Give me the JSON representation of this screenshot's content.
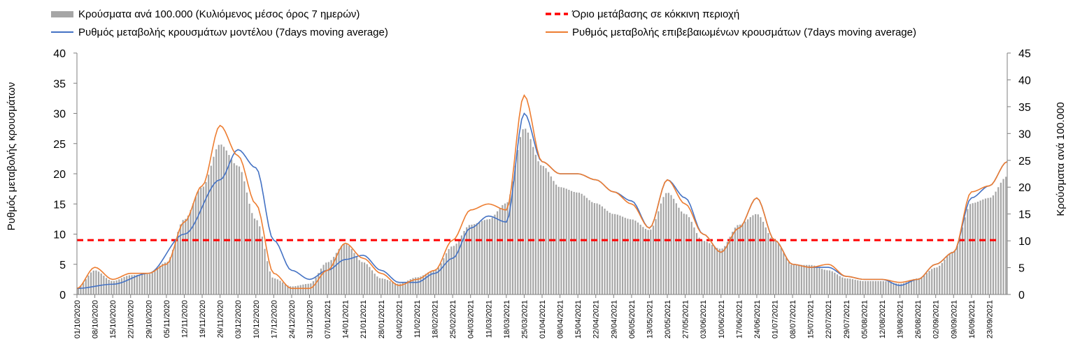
{
  "chart_data": {
    "type": "bar+line",
    "legend": {
      "bars": "Κρούσματα ανά 100.000 (Κυλιόμενος μέσος όρος 7 ημερών)",
      "threshold": "Όριο μετάβασης σε κόκκινη περιοχή",
      "model": "Ρυθμός μεταβολής κρουσμάτων μοντέλου (7days moving average)",
      "confirmed": "Ρυθμός μεταβολής επιβεβαιωμένων κρουσμάτων (7days moving average)"
    },
    "ylabel_left": "Ρυθμός μεταβολής κρουσμάτων",
    "ylabel_right": "Κρούσματα ανά 100.000",
    "ylim_left": [
      0,
      40
    ],
    "ylim_right": [
      0,
      45
    ],
    "yticks_left": [
      0,
      5,
      10,
      15,
      20,
      25,
      30,
      35,
      40
    ],
    "yticks_right": [
      0,
      5,
      10,
      15,
      20,
      25,
      30,
      35,
      40,
      45
    ],
    "threshold_value_left": 9,
    "x_tick_labels": [
      "01/10/2020",
      "08/10/2020",
      "15/10/2020",
      "22/10/2020",
      "29/10/2020",
      "05/11/2020",
      "12/11/2020",
      "19/11/2020",
      "26/11/2020",
      "03/12/2020",
      "10/12/2020",
      "17/12/2020",
      "24/12/2020",
      "31/12/2020",
      "07/01/2021",
      "14/01/2021",
      "21/01/2021",
      "28/01/2021",
      "04/02/2021",
      "11/02/2021",
      "18/02/2021",
      "25/02/2021",
      "04/03/2021",
      "11/03/2021",
      "18/03/2021",
      "25/03/2021",
      "01/04/2021",
      "08/04/2021",
      "15/04/2021",
      "22/04/2021",
      "29/04/2021",
      "06/05/2021",
      "13/05/2021",
      "20/05/2021",
      "27/05/2021",
      "03/06/2021",
      "10/06/2021",
      "17/06/2021",
      "24/06/2021",
      "01/07/2021",
      "08/07/2021",
      "15/07/2021",
      "22/07/2021",
      "29/07/2021",
      "05/08/2021",
      "12/08/2021",
      "19/08/2021",
      "26/08/2021",
      "02/09/2021",
      "09/09/2021",
      "16/09/2021",
      "23/09/2021"
    ],
    "days_per_tick": 7,
    "num_days": 364,
    "bars_keyframes_right": [
      [
        0,
        1.2
      ],
      [
        7,
        4.5
      ],
      [
        14,
        2.5
      ],
      [
        21,
        3.6
      ],
      [
        28,
        3.8
      ],
      [
        35,
        6
      ],
      [
        42,
        14
      ],
      [
        49,
        20
      ],
      [
        56,
        28
      ],
      [
        63,
        24
      ],
      [
        70,
        14
      ],
      [
        77,
        3
      ],
      [
        84,
        1.5
      ],
      [
        91,
        2
      ],
      [
        98,
        6
      ],
      [
        105,
        9.5
      ],
      [
        112,
        6
      ],
      [
        119,
        3
      ],
      [
        126,
        2
      ],
      [
        133,
        3.2
      ],
      [
        140,
        4.5
      ],
      [
        147,
        9
      ],
      [
        154,
        13
      ],
      [
        161,
        14
      ],
      [
        168,
        17
      ],
      [
        175,
        31
      ],
      [
        182,
        24
      ],
      [
        189,
        20
      ],
      [
        196,
        19
      ],
      [
        203,
        17
      ],
      [
        210,
        15
      ],
      [
        217,
        14
      ],
      [
        224,
        12
      ],
      [
        231,
        19
      ],
      [
        238,
        15
      ],
      [
        245,
        10
      ],
      [
        252,
        8.5
      ],
      [
        259,
        13
      ],
      [
        266,
        15
      ],
      [
        273,
        10
      ],
      [
        280,
        5.5
      ],
      [
        287,
        5.5
      ],
      [
        294,
        4.5
      ],
      [
        301,
        3
      ],
      [
        308,
        2.5
      ],
      [
        315,
        2.5
      ],
      [
        322,
        2
      ],
      [
        329,
        3
      ],
      [
        336,
        5
      ],
      [
        343,
        8
      ],
      [
        350,
        17
      ],
      [
        357,
        18
      ],
      [
        364,
        22
      ]
    ],
    "model_keyframes_left": [
      [
        0,
        1
      ],
      [
        14,
        1.7
      ],
      [
        28,
        3.5
      ],
      [
        42,
        10
      ],
      [
        56,
        19
      ],
      [
        63,
        24
      ],
      [
        70,
        21
      ],
      [
        77,
        9
      ],
      [
        84,
        4
      ],
      [
        91,
        2.5
      ],
      [
        98,
        4
      ],
      [
        105,
        5.8
      ],
      [
        112,
        6.5
      ],
      [
        119,
        4
      ],
      [
        126,
        2
      ],
      [
        133,
        2
      ],
      [
        140,
        3.5
      ],
      [
        147,
        6
      ],
      [
        154,
        11
      ],
      [
        161,
        13
      ],
      [
        168,
        12
      ],
      [
        175,
        30
      ],
      [
        182,
        22
      ],
      [
        189,
        20
      ],
      [
        196,
        20
      ],
      [
        203,
        19
      ],
      [
        210,
        17
      ],
      [
        217,
        15.5
      ],
      [
        224,
        11
      ],
      [
        231,
        19
      ],
      [
        238,
        16
      ],
      [
        245,
        10
      ],
      [
        252,
        7
      ],
      [
        259,
        11
      ],
      [
        266,
        16
      ],
      [
        273,
        9
      ],
      [
        280,
        5
      ],
      [
        287,
        4.5
      ],
      [
        294,
        4.5
      ],
      [
        301,
        3
      ],
      [
        308,
        2.5
      ],
      [
        315,
        2.5
      ],
      [
        322,
        1.5
      ],
      [
        329,
        2.5
      ],
      [
        336,
        5
      ],
      [
        343,
        7
      ],
      [
        350,
        16
      ],
      [
        357,
        18
      ],
      [
        364,
        22
      ]
    ],
    "confirmed_keyframes_left": [
      [
        0,
        1
      ],
      [
        7,
        4.5
      ],
      [
        14,
        2.5
      ],
      [
        21,
        3.5
      ],
      [
        28,
        3.5
      ],
      [
        35,
        5
      ],
      [
        42,
        12
      ],
      [
        49,
        18
      ],
      [
        56,
        28
      ],
      [
        63,
        23
      ],
      [
        70,
        15
      ],
      [
        77,
        3.5
      ],
      [
        84,
        1
      ],
      [
        91,
        1
      ],
      [
        98,
        4
      ],
      [
        105,
        8.5
      ],
      [
        112,
        6
      ],
      [
        119,
        3.5
      ],
      [
        126,
        1.5
      ],
      [
        133,
        2.5
      ],
      [
        140,
        4
      ],
      [
        147,
        9
      ],
      [
        154,
        14
      ],
      [
        161,
        15
      ],
      [
        168,
        14
      ],
      [
        175,
        33
      ],
      [
        182,
        22
      ],
      [
        189,
        20
      ],
      [
        196,
        20
      ],
      [
        203,
        19
      ],
      [
        210,
        17
      ],
      [
        217,
        15
      ],
      [
        224,
        11
      ],
      [
        231,
        19
      ],
      [
        238,
        15
      ],
      [
        245,
        10
      ],
      [
        252,
        7
      ],
      [
        259,
        11
      ],
      [
        266,
        16
      ],
      [
        273,
        9
      ],
      [
        280,
        5
      ],
      [
        287,
        4.5
      ],
      [
        294,
        5
      ],
      [
        301,
        3
      ],
      [
        308,
        2.5
      ],
      [
        315,
        2.5
      ],
      [
        322,
        2
      ],
      [
        329,
        2.5
      ],
      [
        336,
        5
      ],
      [
        343,
        7
      ],
      [
        350,
        17
      ],
      [
        357,
        18
      ],
      [
        364,
        22
      ]
    ]
  }
}
